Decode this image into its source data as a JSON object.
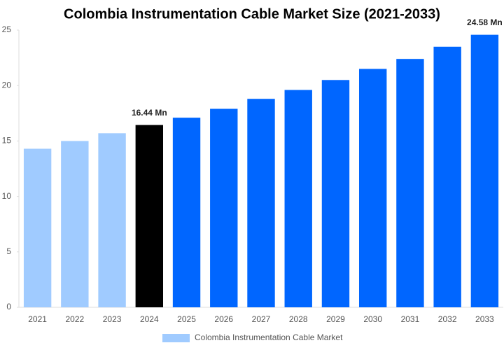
{
  "chart_data": {
    "type": "bar",
    "title": "Colombia Instrumentation Cable Market Size (2021-2033)",
    "categories": [
      "2021",
      "2022",
      "2023",
      "2024",
      "2025",
      "2026",
      "2027",
      "2028",
      "2029",
      "2030",
      "2031",
      "2032",
      "2033"
    ],
    "series": [
      {
        "name": "Colombia Instrumentation Cable Market",
        "color": "#a0cbff",
        "colors": [
          "#a0cbff",
          "#a0cbff",
          "#a0cbff",
          "#000000",
          "#0066ff",
          "#0066ff",
          "#0066ff",
          "#0066ff",
          "#0066ff",
          "#0066ff",
          "#0066ff",
          "#0066ff",
          "#0066ff"
        ],
        "values": [
          14.3,
          15.0,
          15.7,
          16.44,
          17.1,
          17.9,
          18.8,
          19.6,
          20.5,
          21.5,
          22.4,
          23.5,
          24.58
        ],
        "value_labels": [
          null,
          null,
          null,
          "16.44 Mn",
          null,
          null,
          null,
          null,
          null,
          null,
          null,
          null,
          "24.58 Mn"
        ]
      }
    ],
    "ylim": [
      0,
      25
    ],
    "yticks": [
      0,
      5,
      10,
      15,
      20,
      25
    ],
    "grid": false
  }
}
